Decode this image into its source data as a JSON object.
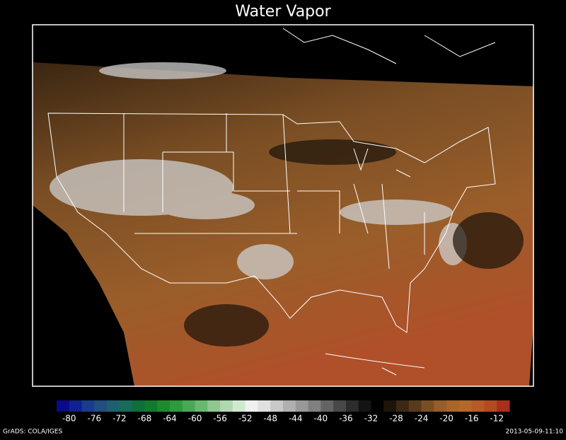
{
  "title": "Water Vapor",
  "colorbar": {
    "range": [
      -82,
      -10
    ],
    "ticks": [
      -80,
      -76,
      -72,
      -68,
      -64,
      -60,
      -56,
      -52,
      -48,
      -44,
      -40,
      -36,
      -32,
      -28,
      -24,
      -20,
      -16,
      -12
    ],
    "colors": [
      "#0a0a8a",
      "#102090",
      "#1a3c8c",
      "#1f5080",
      "#1f6070",
      "#1a6a5a",
      "#0f6e3a",
      "#127a2c",
      "#1e8a2e",
      "#2e9a3c",
      "#4aa854",
      "#6ab870",
      "#8ec890",
      "#b0d8b0",
      "#d0e8d0",
      "#f0f0f0",
      "#e0e0e0",
      "#c8c8c8",
      "#b0b0b0",
      "#989898",
      "#808080",
      "#646464",
      "#484848",
      "#2c2c2c",
      "#141414",
      "#000000",
      "#1e140a",
      "#3c2814",
      "#5a3a1c",
      "#7a4e24",
      "#965e2a",
      "#a8662c",
      "#b4682c",
      "#b85a28",
      "#b44a22",
      "#a8301a"
    ]
  },
  "footer": {
    "left": "GrADS: COLA/IGES",
    "right": "2013-05-09-11:10"
  }
}
